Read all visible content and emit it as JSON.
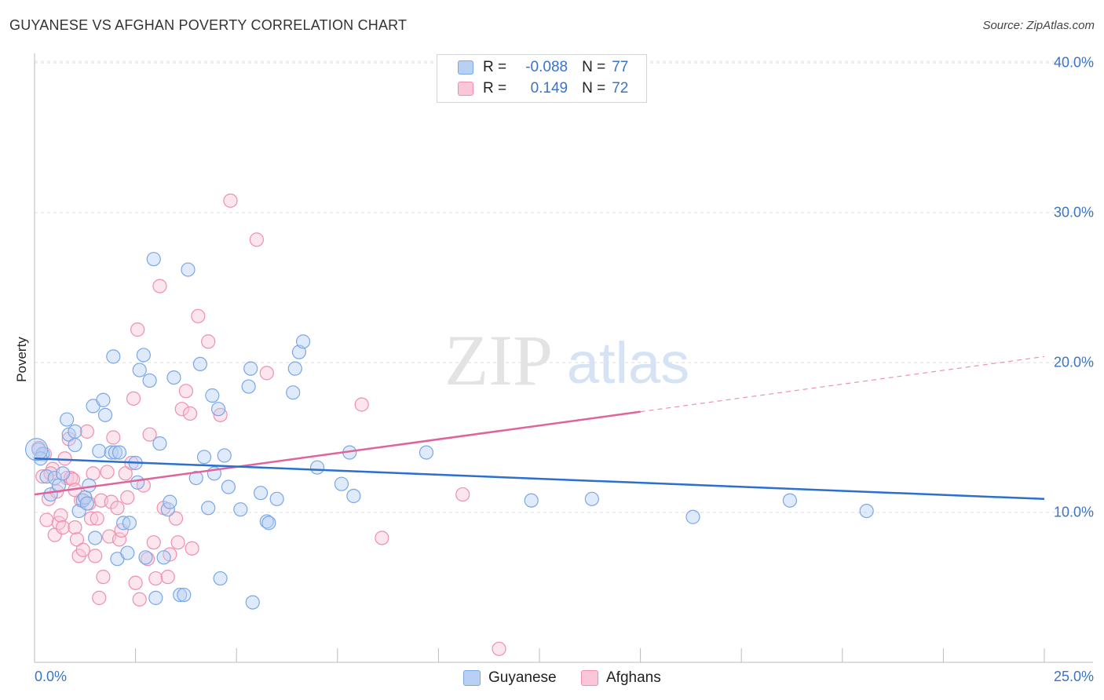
{
  "title": "GUYANESE VS AFGHAN POVERTY CORRELATION CHART",
  "source": "Source: ZipAtlas.com",
  "watermark": {
    "zip": "ZIP",
    "atlas": "atlas"
  },
  "legend_top": {
    "rows": [
      {
        "r_label": "R =",
        "r_value": "-0.088",
        "n_label": "N =",
        "n_value": "77"
      },
      {
        "r_label": "R =",
        "r_value": "0.149",
        "n_label": "N =",
        "n_value": "72"
      }
    ]
  },
  "legend_bottom": {
    "items": [
      {
        "label": "Guyanese"
      },
      {
        "label": "Afghans"
      }
    ]
  },
  "colors": {
    "guyanese": "#7aa7e6",
    "guyanese_fill": "#b8d0f3",
    "afghans": "#ef8fae",
    "afghans_fill": "#f9c7d6",
    "blue_line": "#2b6fcf",
    "pink_line": "#e0649a",
    "axis_label": "#3b74c6"
  },
  "chart_data": {
    "type": "scatter",
    "ylabel": "Poverty",
    "xlabel": "",
    "xlim": [
      0,
      25
    ],
    "ylim": [
      0,
      40
    ],
    "x_tick_labels": [
      "0.0%",
      "25.0%"
    ],
    "y_ticks": [
      10,
      20,
      30,
      40
    ],
    "y_tick_labels": [
      "10.0%",
      "20.0%",
      "30.0%",
      "40.0%"
    ],
    "grid": true,
    "legend_placement": "top-center",
    "series": [
      {
        "name": "Guyanese",
        "r": -0.088,
        "n": 77,
        "trend": {
          "x": [
            0,
            25
          ],
          "y": [
            13.6,
            10.9
          ],
          "solid_until": 25
        },
        "points": [
          [
            0.1,
            14.2
          ],
          [
            0.2,
            13.9
          ],
          [
            0.15,
            13.6
          ],
          [
            0.3,
            12.4
          ],
          [
            0.4,
            11.2
          ],
          [
            0.5,
            12.3
          ],
          [
            0.6,
            11.8
          ],
          [
            0.7,
            12.6
          ],
          [
            0.8,
            16.2
          ],
          [
            0.85,
            15.2
          ],
          [
            1.0,
            14.5
          ],
          [
            1.0,
            15.4
          ],
          [
            1.1,
            10.1
          ],
          [
            1.2,
            10.8
          ],
          [
            1.25,
            11.0
          ],
          [
            1.3,
            10.6
          ],
          [
            1.35,
            11.8
          ],
          [
            1.45,
            17.1
          ],
          [
            1.5,
            8.3
          ],
          [
            1.6,
            14.1
          ],
          [
            1.7,
            17.5
          ],
          [
            1.75,
            16.5
          ],
          [
            1.9,
            14.0
          ],
          [
            1.95,
            20.4
          ],
          [
            2.0,
            14.0
          ],
          [
            2.05,
            6.9
          ],
          [
            2.1,
            14.0
          ],
          [
            2.2,
            9.3
          ],
          [
            2.3,
            7.3
          ],
          [
            2.35,
            9.3
          ],
          [
            2.5,
            13.3
          ],
          [
            2.55,
            12.0
          ],
          [
            2.6,
            19.5
          ],
          [
            2.7,
            20.5
          ],
          [
            2.75,
            7.0
          ],
          [
            2.85,
            18.8
          ],
          [
            2.95,
            26.9
          ],
          [
            3.0,
            4.3
          ],
          [
            3.1,
            14.6
          ],
          [
            3.2,
            7.0
          ],
          [
            3.3,
            10.2
          ],
          [
            3.35,
            10.7
          ],
          [
            3.45,
            19.0
          ],
          [
            3.6,
            4.5
          ],
          [
            3.7,
            4.5
          ],
          [
            3.8,
            26.2
          ],
          [
            4.0,
            12.3
          ],
          [
            4.1,
            19.9
          ],
          [
            4.2,
            13.7
          ],
          [
            4.3,
            10.3
          ],
          [
            4.4,
            17.8
          ],
          [
            4.45,
            12.6
          ],
          [
            4.55,
            16.9
          ],
          [
            4.6,
            5.6
          ],
          [
            4.7,
            13.8
          ],
          [
            4.8,
            11.7
          ],
          [
            5.1,
            10.2
          ],
          [
            5.3,
            18.4
          ],
          [
            5.35,
            19.6
          ],
          [
            5.4,
            4.0
          ],
          [
            5.6,
            11.3
          ],
          [
            5.75,
            9.4
          ],
          [
            5.8,
            9.3
          ],
          [
            6.0,
            10.9
          ],
          [
            6.4,
            18.0
          ],
          [
            6.45,
            19.6
          ],
          [
            6.55,
            20.7
          ],
          [
            6.65,
            21.4
          ],
          [
            7.0,
            13.0
          ],
          [
            7.6,
            11.9
          ],
          [
            7.8,
            14.0
          ],
          [
            7.9,
            11.1
          ],
          [
            9.7,
            14.0
          ],
          [
            12.3,
            10.8
          ],
          [
            13.8,
            10.9
          ],
          [
            16.3,
            9.7
          ],
          [
            18.7,
            10.8
          ],
          [
            20.6,
            10.1
          ]
        ]
      },
      {
        "name": "Afghans",
        "r": 0.149,
        "n": 72,
        "trend": {
          "x": [
            0,
            25
          ],
          "y": [
            11.2,
            20.4
          ],
          "solid_until": 15
        },
        "points": [
          [
            0.1,
            14.3
          ],
          [
            0.2,
            12.4
          ],
          [
            0.25,
            13.9
          ],
          [
            0.3,
            9.5
          ],
          [
            0.35,
            10.9
          ],
          [
            0.45,
            12.9
          ],
          [
            0.5,
            8.5
          ],
          [
            0.55,
            11.4
          ],
          [
            0.6,
            9.3
          ],
          [
            0.65,
            9.8
          ],
          [
            0.7,
            9.0
          ],
          [
            0.75,
            13.6
          ],
          [
            0.8,
            12.3
          ],
          [
            0.85,
            14.9
          ],
          [
            0.9,
            12.3
          ],
          [
            0.95,
            12.2
          ],
          [
            1.0,
            9.0
          ],
          [
            1.05,
            8.2
          ],
          [
            1.1,
            7.1
          ],
          [
            1.15,
            10.8
          ],
          [
            1.2,
            7.5
          ],
          [
            1.25,
            11.0
          ],
          [
            1.3,
            15.4
          ],
          [
            1.35,
            10.6
          ],
          [
            1.4,
            9.6
          ],
          [
            1.45,
            12.6
          ],
          [
            1.5,
            7.1
          ],
          [
            1.55,
            9.6
          ],
          [
            1.6,
            4.3
          ],
          [
            1.65,
            10.8
          ],
          [
            1.7,
            5.7
          ],
          [
            1.8,
            12.7
          ],
          [
            1.85,
            8.4
          ],
          [
            1.9,
            10.7
          ],
          [
            1.95,
            15.0
          ],
          [
            2.05,
            10.3
          ],
          [
            2.1,
            8.2
          ],
          [
            2.15,
            8.8
          ],
          [
            2.25,
            12.6
          ],
          [
            2.3,
            11.0
          ],
          [
            2.4,
            13.3
          ],
          [
            2.45,
            17.6
          ],
          [
            2.5,
            5.3
          ],
          [
            2.55,
            22.2
          ],
          [
            2.6,
            4.2
          ],
          [
            2.7,
            11.8
          ],
          [
            2.8,
            6.9
          ],
          [
            2.85,
            15.2
          ],
          [
            2.95,
            8.0
          ],
          [
            3.0,
            5.6
          ],
          [
            3.1,
            25.1
          ],
          [
            3.2,
            10.3
          ],
          [
            3.3,
            5.7
          ],
          [
            3.35,
            7.2
          ],
          [
            3.5,
            9.6
          ],
          [
            3.55,
            8.0
          ],
          [
            3.65,
            16.9
          ],
          [
            3.75,
            18.1
          ],
          [
            3.85,
            16.6
          ],
          [
            3.9,
            7.6
          ],
          [
            4.05,
            23.1
          ],
          [
            4.3,
            21.4
          ],
          [
            4.6,
            16.5
          ],
          [
            4.85,
            30.8
          ],
          [
            5.5,
            28.2
          ],
          [
            5.75,
            19.3
          ],
          [
            8.1,
            17.2
          ],
          [
            8.6,
            8.3
          ],
          [
            10.6,
            11.2
          ],
          [
            11.5,
            0.9
          ],
          [
            0.4,
            12.6
          ],
          [
            1.0,
            11.5
          ]
        ]
      }
    ]
  }
}
